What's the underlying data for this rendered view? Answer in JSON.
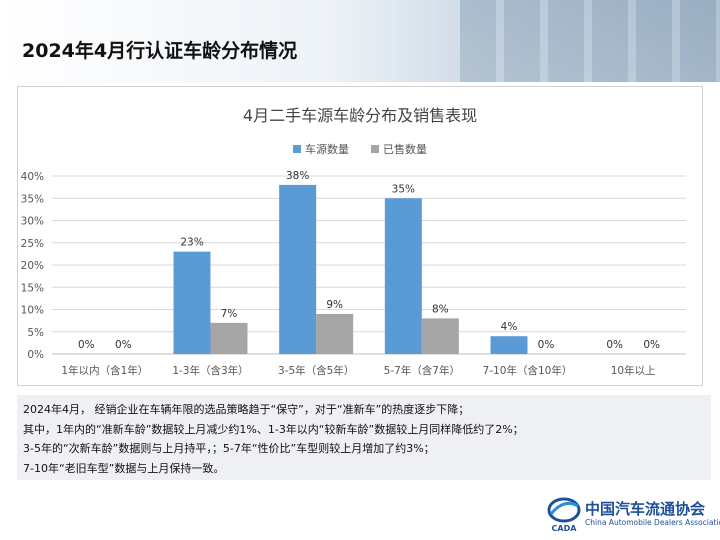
{
  "page_title": "2024年4月行认证车龄分布情况",
  "chart_data": {
    "type": "bar",
    "title": "4月二手车源车龄分布及销售表现",
    "categories": [
      "1年以内（含1年）",
      "1-3年（含3年）",
      "3-5年（含5年）",
      "5-7年（含7年）",
      "7-10年（含10年）",
      "10年以上"
    ],
    "series": [
      {
        "name": "车源数量",
        "values": [
          0,
          23,
          38,
          35,
          4,
          0
        ],
        "labels": [
          "0%",
          "23%",
          "38%",
          "35%",
          "4%",
          "0%"
        ],
        "color": "#5b9bd5"
      },
      {
        "name": "已售数量",
        "values": [
          0,
          7,
          9,
          8,
          0,
          0
        ],
        "labels": [
          "0%",
          "7%",
          "9%",
          "8%",
          "0%",
          "0%"
        ],
        "color": "#a5a5a5"
      }
    ],
    "ylim": [
      0,
      40
    ],
    "yticks": [
      "0%",
      "5%",
      "10%",
      "15%",
      "20%",
      "25%",
      "30%",
      "35%",
      "40%"
    ],
    "ytick_values": [
      0,
      5,
      10,
      15,
      20,
      25,
      30,
      35,
      40
    ],
    "grid": true,
    "legend_position": "top"
  },
  "notes": [
    "2024年4月， 经销企业在车辆年限的选品策略趋于“保守”，对于“准新车”的热度逐步下降；",
    "其中，1年内的“准新车龄”数据较上月减少约1%、1-3年以内“较新车龄”数据较上月同样降低约了2%；",
    "3-5年的“次新车龄”数据则与上月持平，；5-7年“性价比”车型则较上月增加了约3%；",
    "7-10年“老旧车型”数据与上月保持一致。"
  ],
  "logo": {
    "cn": "中国汽车流通协会",
    "en": "China Automobile Dealers Association",
    "mark_text": "CADA"
  },
  "colors": {
    "primary": "#5b9bd5",
    "secondary": "#a5a5a5",
    "logo": "#1d4f9a"
  }
}
